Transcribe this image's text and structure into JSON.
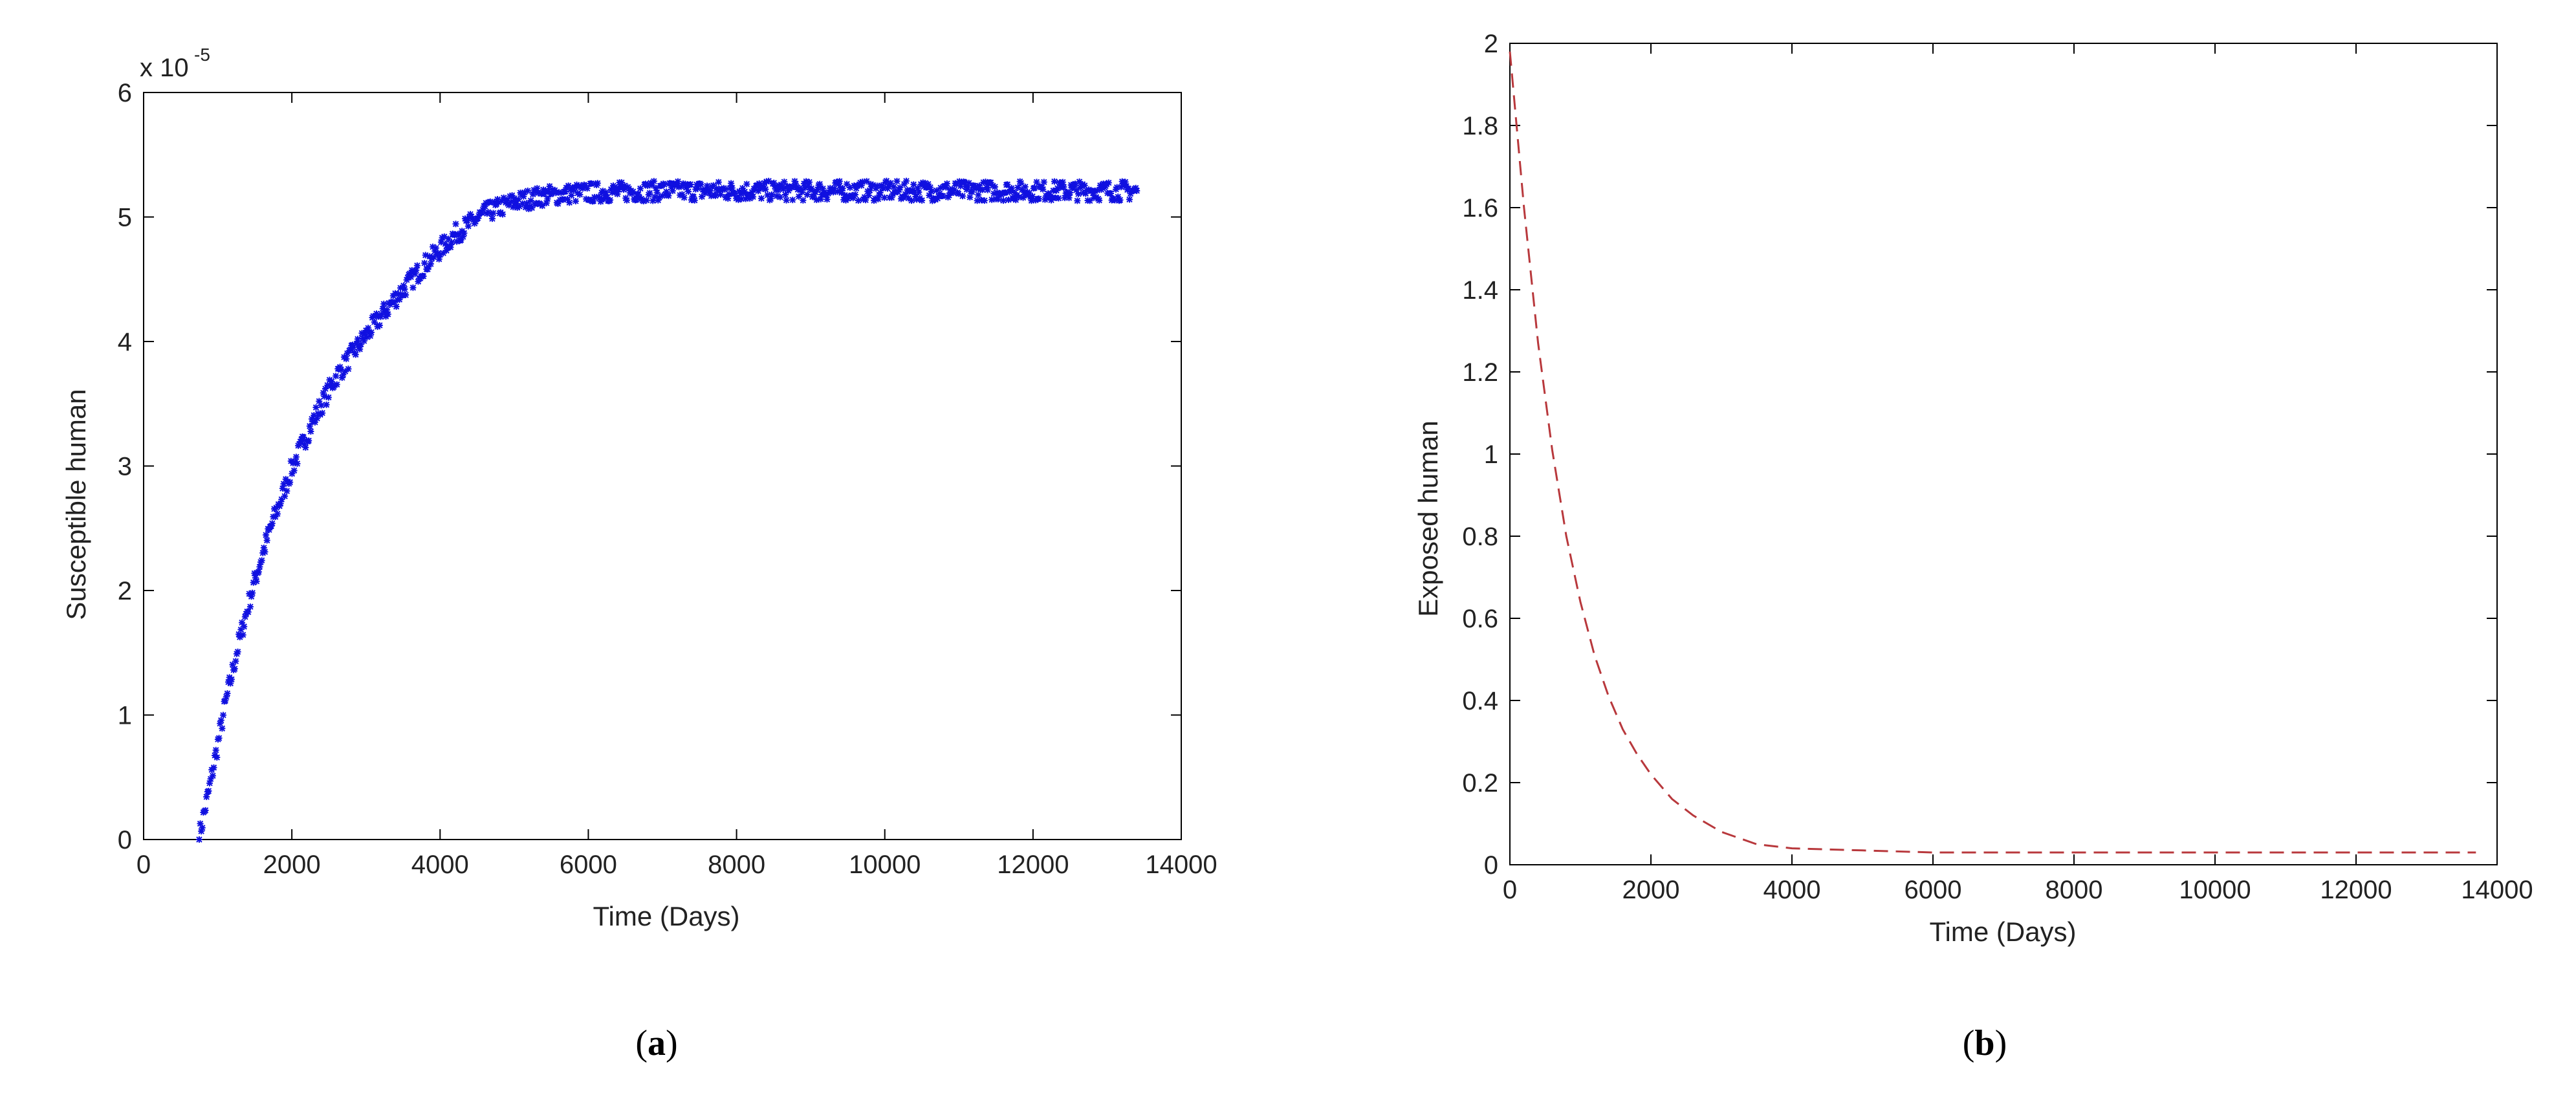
{
  "chart_data": [
    {
      "type": "scatter",
      "panel_label": "a",
      "title": "",
      "xlabel": "Time (Days)",
      "ylabel": "Susceptible human",
      "y_exponent_label": "x 10",
      "y_exponent_power": "-5",
      "xlim": [
        0,
        14000
      ],
      "ylim": [
        0,
        6
      ],
      "xticks": [
        "0",
        "2000",
        "4000",
        "6000",
        "8000",
        "10000",
        "12000",
        "14000"
      ],
      "yticks": [
        "0",
        "1",
        "2",
        "3",
        "4",
        "5",
        "6"
      ],
      "grid": false,
      "legend": "none",
      "series": [
        {
          "color": "#1010e0",
          "marker": "star",
          "x": [
            750,
            900,
            1100,
            1300,
            1500,
            1700,
            2000,
            2300,
            2600,
            3000,
            3400,
            3800,
            4200,
            4600,
            5000,
            5400,
            5800,
            6200,
            7000,
            8000,
            9000,
            10000,
            11000,
            12000,
            13000,
            13400
          ],
          "y": [
            0.02,
            0.45,
            1.08,
            1.62,
            2.08,
            2.48,
            2.98,
            3.38,
            3.72,
            4.05,
            4.35,
            4.62,
            4.86,
            5.03,
            5.12,
            5.17,
            5.19,
            5.2,
            5.21,
            5.21,
            5.21,
            5.21,
            5.21,
            5.21,
            5.21,
            5.21
          ]
        }
      ]
    },
    {
      "type": "line",
      "panel_label": "b",
      "title": "",
      "xlabel": "Time (Days)",
      "ylabel": "Exposed human",
      "xlim": [
        0,
        14000
      ],
      "ylim": [
        0,
        2
      ],
      "xticks": [
        "0",
        "2000",
        "4000",
        "6000",
        "8000",
        "10000",
        "12000",
        "14000"
      ],
      "yticks": [
        "0",
        "0.2",
        "0.4",
        "0.6",
        "0.8",
        "1",
        "1.2",
        "1.4",
        "1.6",
        "1.8",
        "2"
      ],
      "grid": false,
      "legend": "none",
      "series": [
        {
          "color": "#b8383c",
          "line_style": "dashed",
          "x": [
            0,
            200,
            400,
            600,
            800,
            1000,
            1200,
            1400,
            1600,
            1800,
            2000,
            2300,
            2600,
            3000,
            3500,
            4000,
            5000,
            6000,
            8000,
            10000,
            12000,
            13700
          ],
          "y": [
            1.98,
            1.6,
            1.27,
            1.01,
            0.8,
            0.64,
            0.51,
            0.41,
            0.33,
            0.27,
            0.22,
            0.16,
            0.12,
            0.08,
            0.05,
            0.04,
            0.035,
            0.03,
            0.03,
            0.03,
            0.03,
            0.03
          ]
        }
      ]
    }
  ]
}
